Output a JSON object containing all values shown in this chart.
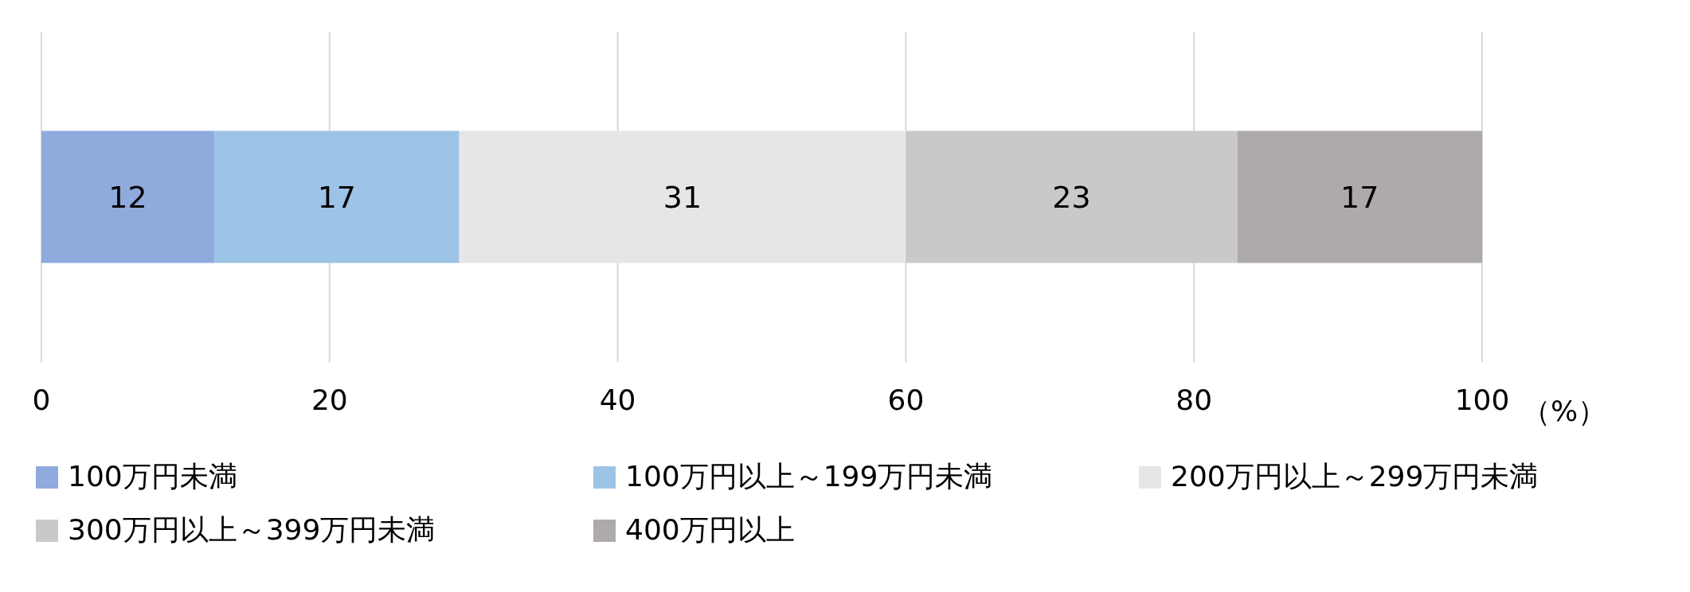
{
  "chart_data": {
    "type": "bar",
    "orientation": "horizontal",
    "stacked": true,
    "categories": [
      null
    ],
    "series": [
      {
        "name": "100万円未満",
        "color": "#8faadc",
        "values": [
          12
        ]
      },
      {
        "name": "100万円以上～199万円未満",
        "color": "#9dc3e6",
        "values": [
          17
        ]
      },
      {
        "name": "200万円以上～299万円未満",
        "color": "#e6e6e6",
        "values": [
          31
        ]
      },
      {
        "name": "300万円以上～399万円未満",
        "color": "#c9c9c9",
        "values": [
          23
        ]
      },
      {
        "name": "400万円以上",
        "color": "#aeaaaa",
        "values": [
          17
        ]
      }
    ],
    "xlim": [
      0,
      100
    ],
    "xticks": [
      0,
      20,
      40,
      60,
      80,
      100
    ],
    "xlabel": "（%）",
    "grid": "x",
    "data_labels": true,
    "legend": "bottom",
    "tick_labels": "x"
  }
}
